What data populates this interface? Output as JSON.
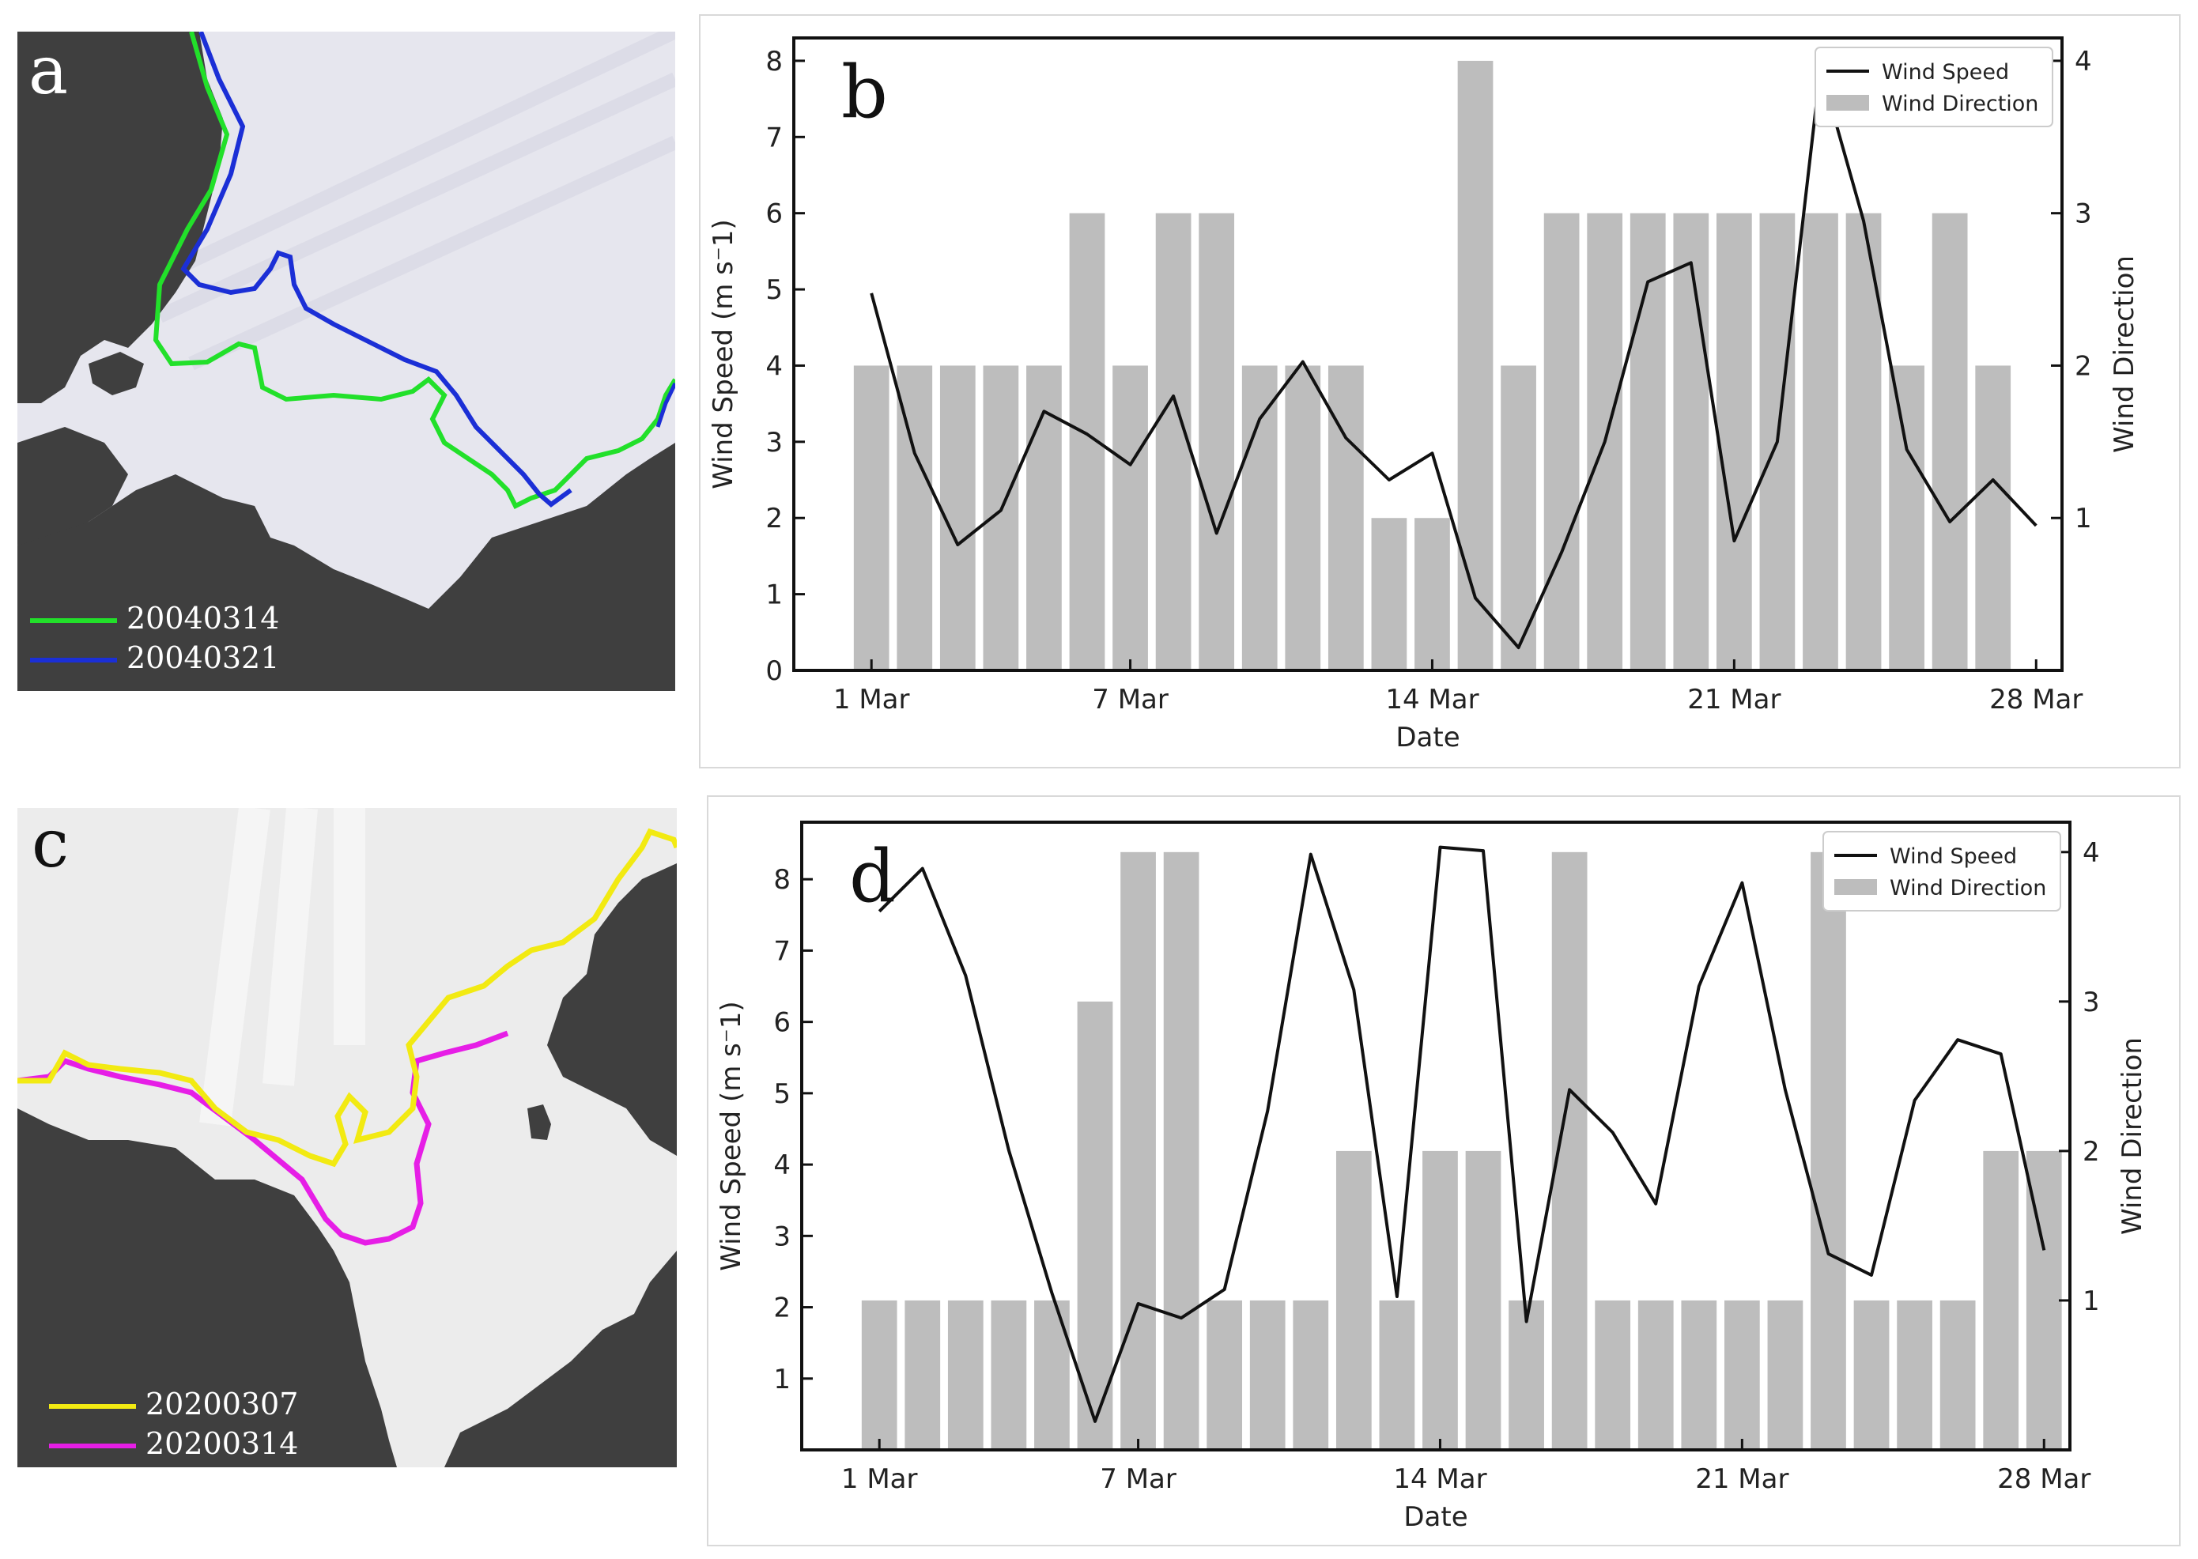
{
  "panels": {
    "a": {
      "letter": "a",
      "legend": [
        {
          "label": "20040314",
          "color": "#22e02a"
        },
        {
          "label": "20040321",
          "color": "#1b2fd6"
        }
      ]
    },
    "c": {
      "letter": "c",
      "legend": [
        {
          "label": "20200307",
          "color": "#f2ea12"
        },
        {
          "label": "20200314",
          "color": "#e61ee6"
        }
      ]
    }
  },
  "colors": {
    "land": "#3f3f3f",
    "ice_a": "#e6e6ee",
    "ice_c": "#ececec",
    "bar": "#bdbdbd",
    "line": "#111111"
  },
  "chart_data": [
    {
      "panel": "b",
      "type": "bar+line",
      "xlabel": "Date",
      "ylabel_left": "Wind Speed (m s⁻1)",
      "ylabel_right": "Wind Direction",
      "x_ticks": [
        "1 Mar",
        "7 Mar",
        "14 Mar",
        "21 Mar",
        "28 Mar"
      ],
      "x_tick_days": [
        1,
        7,
        14,
        21,
        28
      ],
      "y_left_ticks": [
        "0",
        "1",
        "2",
        "3",
        "4",
        "5",
        "6",
        "7",
        "8"
      ],
      "y_right_ticks": [
        "1",
        "2",
        "3",
        "4"
      ],
      "ylim_left": [
        0,
        8.3
      ],
      "ylim_right": [
        0,
        4.15
      ],
      "xlim": [
        -0.8,
        28.6
      ],
      "legend": {
        "position": "top-right",
        "line_label": "Wind Speed",
        "bar_label": "Wind Direction"
      },
      "days": [
        1,
        2,
        3,
        4,
        5,
        6,
        7,
        8,
        9,
        10,
        11,
        12,
        13,
        14,
        15,
        16,
        17,
        18,
        19,
        20,
        21,
        22,
        23,
        24,
        25,
        26,
        27,
        28
      ],
      "series": [
        {
          "name": "Wind Direction",
          "kind": "bar",
          "values": [
            2,
            2,
            2,
            2,
            2,
            3,
            2,
            3,
            3,
            2,
            2,
            2,
            1,
            1,
            4,
            2,
            3,
            3,
            3,
            3,
            3,
            3,
            3,
            3,
            2,
            3,
            2,
            null
          ]
        },
        {
          "name": "Wind Speed",
          "kind": "line",
          "values": [
            4.95,
            2.85,
            1.65,
            2.1,
            3.4,
            3.1,
            2.7,
            3.6,
            1.8,
            3.3,
            4.05,
            3.05,
            2.5,
            2.85,
            0.95,
            0.3,
            1.55,
            3.0,
            5.1,
            5.35,
            1.7,
            3.0,
            7.9,
            5.9,
            2.9,
            1.95,
            2.5,
            1.9
          ]
        }
      ]
    },
    {
      "panel": "d",
      "type": "bar+line",
      "xlabel": "Date",
      "ylabel_left": "Wind Speed (m s⁻1)",
      "ylabel_right": "Wind Direction",
      "x_ticks": [
        "1 Mar",
        "7 Mar",
        "14 Mar",
        "21 Mar",
        "28 Mar"
      ],
      "x_tick_days": [
        1,
        7,
        14,
        21,
        28
      ],
      "y_left_ticks": [
        "1",
        "2",
        "3",
        "4",
        "5",
        "6",
        "7",
        "8"
      ],
      "y_right_ticks": [
        "1",
        "2",
        "3",
        "4"
      ],
      "ylim_left": [
        0,
        8.8
      ],
      "ylim_right": [
        0,
        4.2
      ],
      "xlim": [
        -0.8,
        28.6
      ],
      "legend": {
        "position": "top-right",
        "line_label": "Wind Speed",
        "bar_label": "Wind Direction"
      },
      "days": [
        1,
        2,
        3,
        4,
        5,
        6,
        7,
        8,
        9,
        10,
        11,
        12,
        13,
        14,
        15,
        16,
        17,
        18,
        19,
        20,
        21,
        22,
        23,
        24,
        25,
        26,
        27,
        28
      ],
      "series": [
        {
          "name": "Wind Direction",
          "kind": "bar",
          "values": [
            1,
            1,
            1,
            1,
            1,
            3,
            4,
            4,
            1,
            1,
            1,
            2,
            1,
            2,
            2,
            1,
            4,
            1,
            1,
            1,
            1,
            1,
            4,
            1,
            1,
            1,
            2,
            2
          ]
        },
        {
          "name": "Wind Speed",
          "kind": "line",
          "values": [
            7.55,
            8.15,
            6.65,
            4.2,
            2.2,
            0.4,
            2.05,
            1.85,
            2.25,
            4.75,
            8.35,
            6.45,
            2.15,
            8.45,
            8.4,
            1.8,
            5.05,
            4.45,
            3.45,
            6.5,
            7.95,
            5.05,
            2.75,
            2.45,
            4.9,
            5.75,
            5.55,
            2.8
          ]
        }
      ]
    }
  ]
}
